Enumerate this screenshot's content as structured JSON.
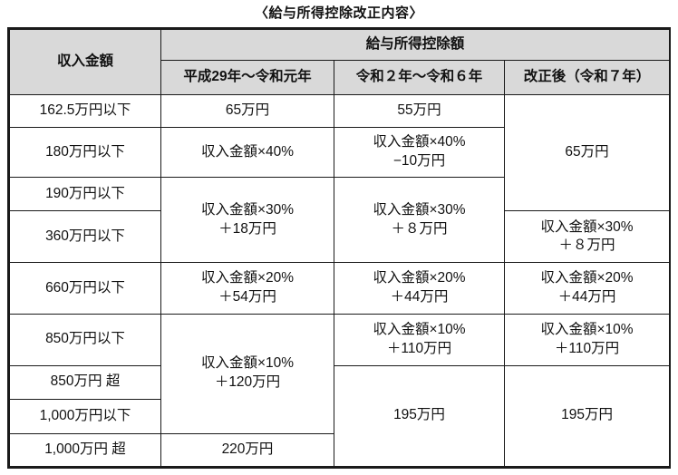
{
  "title": "〈給与所得控除改正内容〉",
  "table": {
    "header": {
      "income": "収入金額",
      "deduction": "給与所得控除額",
      "period_old": "平成29年〜令和元年",
      "period_mid": "令和２年〜令和６年",
      "period_new": "改正後（令和７年）"
    },
    "incomes": [
      "162.5万円以下",
      "180万円以下",
      "190万円以下",
      "360万円以下",
      "660万円以下",
      "850万円以下",
      "850万円 超",
      "1,000万円以下",
      "1,000万円 超"
    ],
    "col_old": [
      "65万円",
      "収入金額×40%",
      "収入金額×30%\n＋18万円",
      "収入金額×20%\n＋54万円",
      "収入金額×10%\n＋120万円",
      "220万円"
    ],
    "col_mid": [
      "55万円",
      "収入金額×40%\n−10万円",
      "収入金額×30%\n＋８万円",
      "収入金額×20%\n＋44万円",
      "収入金額×10%\n＋110万円",
      "195万円"
    ],
    "col_new": [
      "65万円",
      "収入金額×30%\n＋８万円",
      "収入金額×20%\n＋44万円",
      "収入金額×10%\n＋110万円",
      "195万円"
    ]
  },
  "colors": {
    "header_bg": "#d9d9d9",
    "border": "#1a1a1a",
    "text": "#111111",
    "background": "#ffffff"
  }
}
